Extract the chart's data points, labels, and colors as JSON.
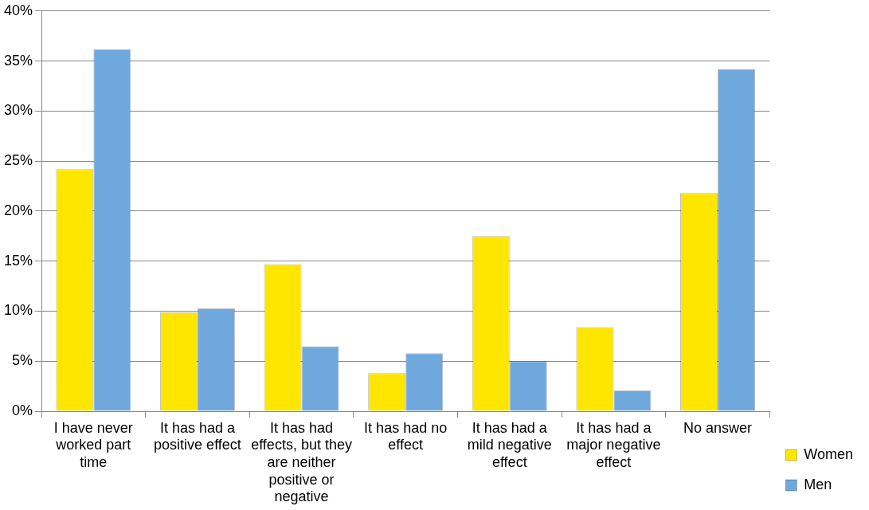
{
  "chart_data": {
    "type": "bar",
    "categories": [
      "I have never worked part time",
      "It has had a positive effect",
      "It has had effects, but they are neither positive or negative",
      "It has had no effect",
      "It has had a mild negative effect",
      "It has had a major negative effect",
      "No answer"
    ],
    "series": [
      {
        "name": "Women",
        "color": "#ffe600",
        "values": [
          24.2,
          9.9,
          14.7,
          3.8,
          17.5,
          8.4,
          21.8
        ]
      },
      {
        "name": "Men",
        "color": "#6fa8dc",
        "values": [
          36.2,
          10.3,
          6.5,
          5.8,
          5.0,
          2.1,
          34.2
        ]
      }
    ],
    "ylim": [
      0,
      40
    ],
    "yticks": [
      {
        "value": 0,
        "label": "0%"
      },
      {
        "value": 5,
        "label": "5%"
      },
      {
        "value": 10,
        "label": "10%"
      },
      {
        "value": 15,
        "label": "15%"
      },
      {
        "value": 20,
        "label": "20%"
      },
      {
        "value": 25,
        "label": "25%"
      },
      {
        "value": 30,
        "label": "30%"
      },
      {
        "value": 35,
        "label": "35%"
      },
      {
        "value": 40,
        "label": "40%"
      }
    ],
    "grid": "y",
    "legend": "bottom right"
  }
}
